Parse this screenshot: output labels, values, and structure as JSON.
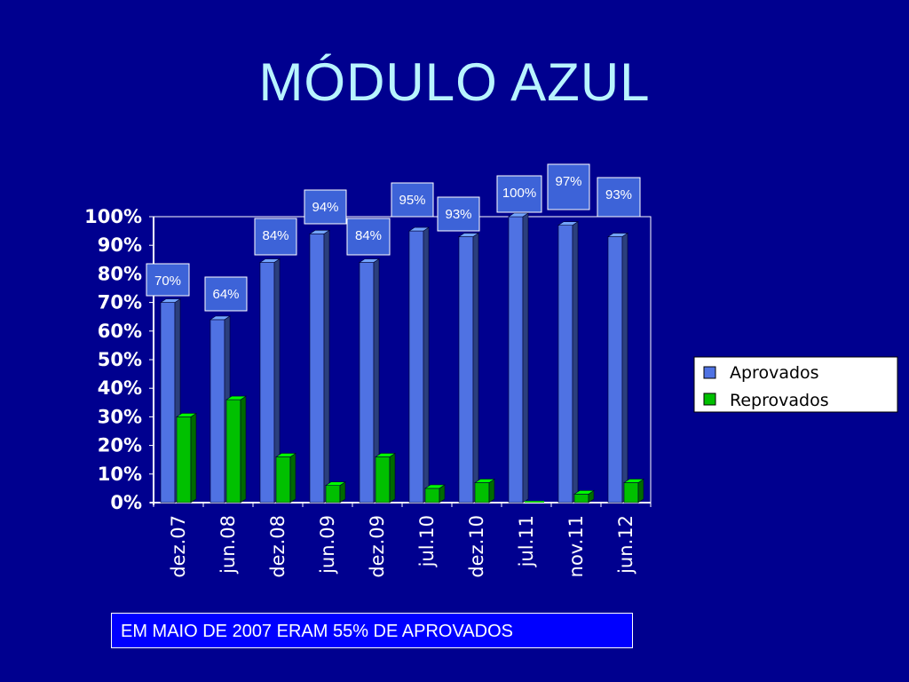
{
  "slide": {
    "title": "MÓDULO AZUL",
    "note": "EM MAIO DE 2007 ERAM 55% DE APROVADOS"
  },
  "colors": {
    "background": "#00008f",
    "title": "#b8f4ff",
    "aprovados": "#4f72e3",
    "reprovados": "#00c000",
    "label_box": "#3d63d8"
  },
  "chart_data": {
    "type": "bar",
    "categories": [
      "dez.07",
      "jun.08",
      "dez.08",
      "jun.09",
      "dez.09",
      "jul.10",
      "dez.10",
      "jul.11",
      "nov.11",
      "jun.12"
    ],
    "series": [
      {
        "name": "Aprovados",
        "values": [
          70,
          64,
          84,
          94,
          84,
          95,
          93,
          100,
          97,
          93
        ]
      },
      {
        "name": "Reprovados",
        "values": [
          30,
          36,
          16,
          6,
          16,
          5,
          7,
          0,
          3,
          7
        ]
      }
    ],
    "data_labels": [
      "70%",
      "64%",
      "84%",
      "94%",
      "84%",
      "95%",
      "93%",
      "100%",
      "97%",
      "93%"
    ],
    "ytick_labels": [
      "0%",
      "10%",
      "20%",
      "30%",
      "40%",
      "50%",
      "60%",
      "70%",
      "80%",
      "90%",
      "100%"
    ],
    "ylim": [
      0,
      100
    ],
    "legend_position": "right",
    "grid": false,
    "title": "",
    "xlabel": "",
    "ylabel": ""
  }
}
